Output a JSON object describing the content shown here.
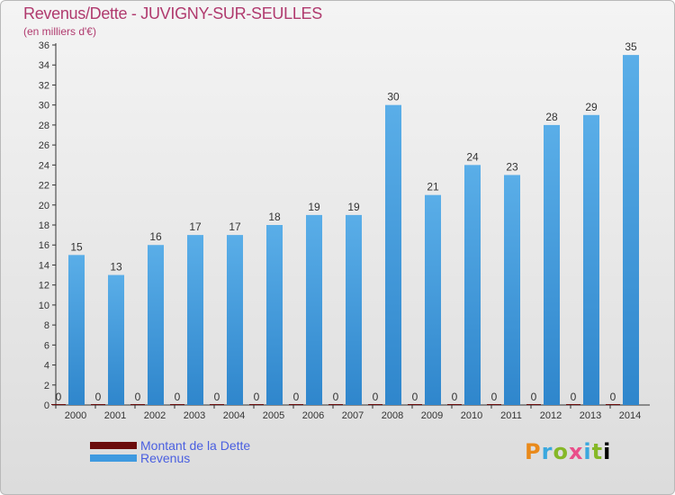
{
  "chart_data": {
    "type": "bar",
    "title": "Revenus/Dette - JUVIGNY-SUR-SEULLES",
    "subtitle": "(en milliers d'€)",
    "categories": [
      "2000",
      "2001",
      "2002",
      "2003",
      "2004",
      "2005",
      "2006",
      "2007",
      "2008",
      "2009",
      "2010",
      "2011",
      "2012",
      "2013",
      "2014"
    ],
    "series": [
      {
        "name": "Montant de la Dette",
        "color": "#6b0c0c",
        "values": [
          0,
          0,
          0,
          0,
          0,
          0,
          0,
          0,
          0,
          0,
          0,
          0,
          0,
          0,
          0
        ]
      },
      {
        "name": "Revenus",
        "color": "#3f9ae0",
        "values": [
          15,
          13,
          16,
          17,
          17,
          18,
          19,
          19,
          30,
          21,
          24,
          23,
          28,
          29,
          35
        ]
      }
    ],
    "ylim": [
      0,
      36
    ],
    "yticks": [
      0,
      2,
      4,
      6,
      8,
      10,
      12,
      14,
      16,
      18,
      20,
      22,
      24,
      26,
      28,
      30,
      32,
      34,
      36
    ],
    "grid": false,
    "legend_position": "bottom-left"
  },
  "brand": {
    "letters": [
      "P",
      "r",
      "o",
      "x",
      "i",
      "t",
      "i"
    ]
  }
}
